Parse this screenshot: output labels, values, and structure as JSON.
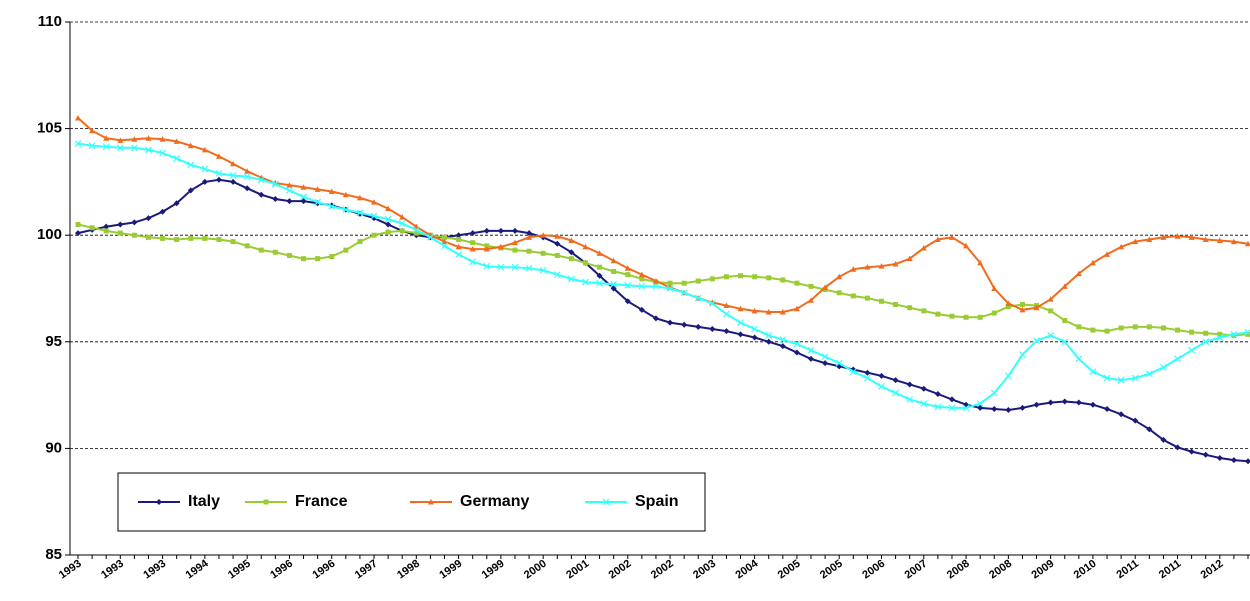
{
  "chart_data": {
    "type": "line",
    "categories": [
      "1993",
      null,
      null,
      "1993",
      null,
      null,
      "1993",
      null,
      null,
      "1994",
      null,
      null,
      "1995",
      null,
      null,
      "1996",
      null,
      null,
      "1996",
      null,
      null,
      "1997",
      null,
      null,
      "1998",
      null,
      null,
      "1999",
      null,
      null,
      "1999",
      null,
      null,
      "2000",
      null,
      null,
      "2001",
      null,
      null,
      "2002",
      null,
      null,
      "2002",
      null,
      null,
      "2003",
      null,
      null,
      "2004",
      null,
      null,
      "2005",
      null,
      null,
      "2005",
      null,
      null,
      "2006",
      null,
      null,
      "2007",
      null,
      null,
      "2008",
      null,
      null,
      "2008",
      null,
      null,
      "2009",
      null,
      null,
      "2010",
      null,
      null,
      "2011",
      null,
      null,
      "2011",
      null,
      null,
      "2012",
      null,
      null
    ],
    "series": [
      {
        "name": "Italy",
        "color": "#1a1a7a",
        "marker": "diamond",
        "values": [
          100.1,
          100.25,
          100.4,
          100.5,
          100.6,
          100.8,
          101.1,
          101.5,
          102.1,
          102.5,
          102.6,
          102.5,
          102.2,
          101.9,
          101.7,
          101.6,
          101.6,
          101.5,
          101.4,
          101.2,
          101.0,
          100.8,
          100.5,
          100.2,
          100.0,
          99.9,
          99.9,
          100.0,
          100.1,
          100.2,
          100.2,
          100.2,
          100.1,
          99.9,
          99.6,
          99.2,
          98.7,
          98.1,
          97.5,
          96.9,
          96.5,
          96.1,
          95.9,
          95.8,
          95.7,
          95.6,
          95.5,
          95.35,
          95.2,
          95.0,
          94.8,
          94.5,
          94.2,
          94.0,
          93.85,
          93.7,
          93.55,
          93.4,
          93.2,
          93.0,
          92.8,
          92.55,
          92.3,
          92.05,
          91.9,
          91.85,
          91.8,
          91.9,
          92.05,
          92.15,
          92.2,
          92.15,
          92.05,
          91.85,
          91.6,
          91.3,
          90.9,
          90.4,
          90.05,
          89.85,
          89.7,
          89.55,
          89.45,
          89.4
        ]
      },
      {
        "name": "France",
        "color": "#99cc33",
        "marker": "square",
        "values": [
          100.5,
          100.35,
          100.2,
          100.1,
          100.0,
          99.9,
          99.85,
          99.8,
          99.85,
          99.85,
          99.8,
          99.7,
          99.5,
          99.3,
          99.2,
          99.05,
          98.9,
          98.9,
          99.0,
          99.3,
          99.7,
          100.0,
          100.15,
          100.2,
          100.1,
          100.0,
          99.9,
          99.8,
          99.65,
          99.5,
          99.4,
          99.3,
          99.25,
          99.15,
          99.05,
          98.9,
          98.7,
          98.5,
          98.3,
          98.15,
          97.95,
          97.8,
          97.75,
          97.75,
          97.85,
          97.95,
          98.05,
          98.1,
          98.05,
          98.0,
          97.9,
          97.75,
          97.6,
          97.45,
          97.3,
          97.15,
          97.05,
          96.9,
          96.75,
          96.6,
          96.45,
          96.3,
          96.2,
          96.15,
          96.15,
          96.35,
          96.65,
          96.75,
          96.7,
          96.45,
          96.0,
          95.7,
          95.55,
          95.5,
          95.65,
          95.7,
          95.7,
          95.65,
          95.55,
          95.45,
          95.4,
          95.35,
          95.3,
          95.35
        ]
      },
      {
        "name": "Germany",
        "color": "#f26b1d",
        "marker": "triangle",
        "values": [
          105.5,
          104.9,
          104.55,
          104.45,
          104.5,
          104.55,
          104.5,
          104.4,
          104.2,
          104.0,
          103.7,
          103.35,
          103.0,
          102.7,
          102.45,
          102.35,
          102.25,
          102.15,
          102.05,
          101.9,
          101.75,
          101.55,
          101.25,
          100.85,
          100.4,
          100.0,
          99.7,
          99.45,
          99.35,
          99.35,
          99.45,
          99.65,
          99.9,
          100.0,
          99.95,
          99.75,
          99.45,
          99.15,
          98.8,
          98.45,
          98.15,
          97.85,
          97.55,
          97.3,
          97.05,
          96.85,
          96.7,
          96.55,
          96.45,
          96.4,
          96.4,
          96.55,
          96.95,
          97.55,
          98.05,
          98.4,
          98.5,
          98.55,
          98.65,
          98.9,
          99.4,
          99.8,
          99.9,
          99.5,
          98.7,
          97.5,
          96.8,
          96.5,
          96.6,
          97.0,
          97.6,
          98.2,
          98.7,
          99.1,
          99.45,
          99.7,
          99.8,
          99.9,
          99.95,
          99.9,
          99.8,
          99.75,
          99.7,
          99.6
        ]
      },
      {
        "name": "Spain",
        "color": "#33ffff",
        "marker": "cross",
        "values": [
          104.3,
          104.2,
          104.15,
          104.1,
          104.1,
          104.0,
          103.85,
          103.6,
          103.3,
          103.1,
          102.9,
          102.8,
          102.75,
          102.6,
          102.4,
          102.1,
          101.8,
          101.55,
          101.35,
          101.2,
          101.05,
          100.9,
          100.75,
          100.55,
          100.25,
          99.9,
          99.5,
          99.1,
          98.75,
          98.55,
          98.5,
          98.5,
          98.45,
          98.35,
          98.15,
          97.95,
          97.8,
          97.75,
          97.7,
          97.65,
          97.6,
          97.6,
          97.5,
          97.3,
          97.05,
          96.8,
          96.3,
          95.9,
          95.6,
          95.3,
          95.1,
          94.9,
          94.6,
          94.3,
          94.0,
          93.6,
          93.3,
          92.9,
          92.6,
          92.3,
          92.1,
          91.95,
          91.9,
          91.9,
          92.1,
          92.6,
          93.4,
          94.4,
          95.05,
          95.3,
          95.0,
          94.2,
          93.6,
          93.3,
          93.2,
          93.3,
          93.5,
          93.8,
          94.2,
          94.6,
          95.0,
          95.2,
          95.35,
          95.45
        ]
      }
    ],
    "ylim": [
      85,
      110
    ],
    "yticks": [
      85,
      90,
      95,
      100,
      105,
      110
    ],
    "grid": true,
    "legend": "lower left"
  }
}
